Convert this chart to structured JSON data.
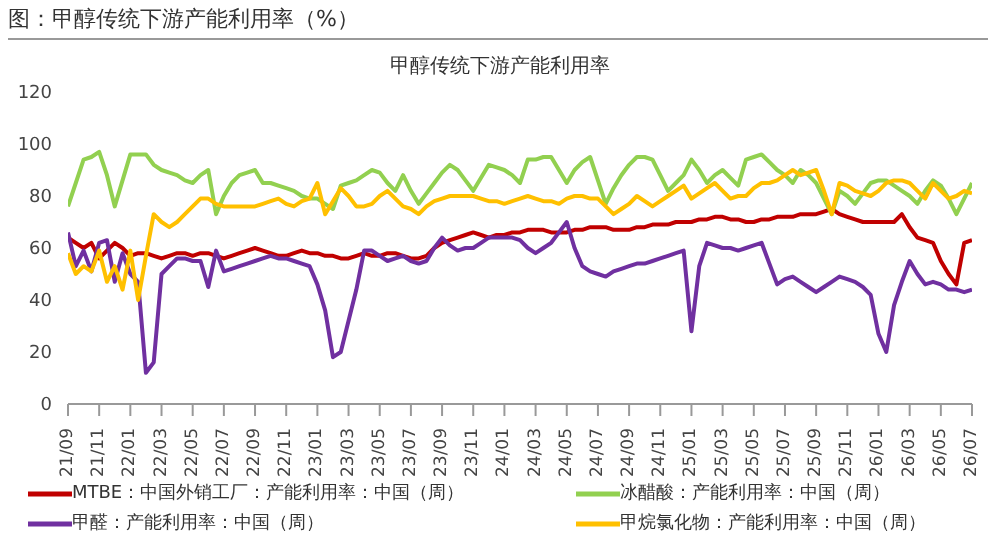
{
  "chart_data": {
    "type": "line",
    "title": "图：甲醇传统下游产能利用率（%）",
    "subtitle": "甲醇传统下游产能利用率",
    "categories": [
      "21/09",
      null,
      null,
      null,
      "21/11",
      null,
      null,
      null,
      "22/01",
      null,
      null,
      null,
      "22/03",
      null,
      null,
      null,
      "22/05",
      null,
      null,
      null,
      "22/07",
      null,
      null,
      null,
      "22/09",
      null,
      null,
      null,
      "22/11",
      null,
      null,
      null,
      "23/01",
      null,
      null,
      null,
      "23/03",
      null,
      null,
      null,
      "23/05",
      null,
      null,
      null,
      "23/07",
      null,
      null,
      null,
      "23/09",
      null,
      null,
      null,
      "23/11",
      null,
      null,
      null,
      "24/01",
      null,
      null,
      null,
      "24/03",
      null,
      null,
      null,
      "24/05",
      null,
      null,
      null,
      "24/07",
      null,
      null,
      null,
      "24/09",
      null,
      null,
      null,
      "24/11",
      null,
      null,
      null,
      "25/01",
      null,
      null,
      null,
      "25/03",
      null,
      null,
      null,
      "25/05",
      null,
      null,
      null,
      "25/07",
      null,
      null,
      null,
      "25/09",
      null,
      null,
      null,
      "25/11",
      null,
      null,
      null,
      "26/01",
      null,
      null,
      null,
      "26/03",
      null,
      null,
      null,
      "26/05",
      null,
      null,
      null,
      "26/07"
    ],
    "ylim": [
      0,
      120
    ],
    "yticks": [
      0,
      20,
      40,
      60,
      80,
      100,
      120
    ],
    "grid": false,
    "legend": "bottom",
    "series": [
      {
        "name": "MTBE：中国外销工厂：产能利用率：中国（周）",
        "color": "#c00000",
        "values": [
          64,
          62,
          60,
          62,
          56,
          59,
          62,
          60,
          57,
          58,
          58,
          57,
          56,
          57,
          58,
          58,
          57,
          58,
          58,
          57,
          56,
          57,
          58,
          59,
          60,
          59,
          58,
          57,
          57,
          58,
          59,
          58,
          58,
          57,
          57,
          56,
          56,
          57,
          58,
          57,
          57,
          58,
          58,
          57,
          56,
          56,
          57,
          60,
          62,
          63,
          64,
          65,
          66,
          65,
          64,
          65,
          65,
          66,
          66,
          67,
          67,
          67,
          66,
          66,
          66,
          67,
          67,
          68,
          68,
          68,
          67,
          67,
          67,
          68,
          68,
          69,
          69,
          69,
          70,
          70,
          70,
          71,
          71,
          72,
          72,
          71,
          71,
          70,
          70,
          71,
          71,
          72,
          72,
          72,
          73,
          73,
          73,
          74,
          75,
          73,
          72,
          71,
          70,
          70,
          70,
          70,
          70,
          73,
          68,
          64,
          63,
          62,
          55,
          50,
          46,
          62,
          63
        ]
      },
      {
        "name": "冰醋酸：产能利用率：中国（周）",
        "color": "#92d050",
        "values": [
          76,
          85,
          94,
          95,
          97,
          88,
          76,
          86,
          96,
          96,
          96,
          92,
          90,
          89,
          88,
          86,
          85,
          88,
          90,
          73,
          80,
          85,
          88,
          89,
          90,
          85,
          85,
          84,
          83,
          82,
          80,
          79,
          79,
          77,
          75,
          84,
          85,
          86,
          88,
          90,
          89,
          85,
          82,
          88,
          82,
          77,
          81,
          85,
          89,
          92,
          90,
          86,
          82,
          87,
          92,
          91,
          90,
          88,
          85,
          94,
          94,
          95,
          95,
          90,
          85,
          90,
          93,
          95,
          86,
          77,
          83,
          88,
          92,
          95,
          95,
          94,
          88,
          82,
          85,
          88,
          94,
          90,
          85,
          88,
          90,
          87,
          84,
          94,
          95,
          96,
          93,
          90,
          88,
          85,
          90,
          88,
          85,
          79,
          73,
          82,
          80,
          77,
          81,
          85,
          86,
          86,
          84,
          82,
          80,
          77,
          82,
          86,
          84,
          79,
          73,
          79,
          85
        ]
      },
      {
        "name": "甲醛：产能利用率：中国（周）",
        "color": "#7030a0",
        "values": [
          66,
          53,
          59,
          51,
          62,
          63,
          47,
          58,
          50,
          47,
          12,
          16,
          50,
          53,
          56,
          56,
          55,
          55,
          45,
          59,
          51,
          52,
          53,
          54,
          55,
          56,
          57,
          56,
          56,
          55,
          54,
          53,
          46,
          36,
          18,
          20,
          32,
          44,
          59,
          59,
          57,
          55,
          56,
          57,
          55,
          54,
          55,
          60,
          64,
          61,
          59,
          60,
          60,
          62,
          64,
          64,
          64,
          64,
          63,
          60,
          58,
          60,
          62,
          66,
          70,
          60,
          53,
          51,
          50,
          49,
          51,
          52,
          53,
          54,
          54,
          55,
          56,
          57,
          58,
          59,
          28,
          53,
          62,
          61,
          60,
          60,
          59,
          60,
          61,
          62,
          54,
          46,
          48,
          49,
          47,
          45,
          43,
          45,
          47,
          49,
          48,
          47,
          45,
          42,
          27,
          20,
          38,
          47,
          55,
          50,
          46,
          47,
          46,
          44,
          44,
          43,
          44
        ]
      },
      {
        "name": "甲烷氯化物：产能利用率：中国（周）",
        "color": "#ffc000",
        "values": [
          58,
          50,
          53,
          51,
          59,
          47,
          53,
          44,
          59,
          40,
          57,
          73,
          70,
          68,
          70,
          73,
          76,
          79,
          79,
          77,
          76,
          76,
          76,
          76,
          76,
          77,
          78,
          79,
          77,
          76,
          78,
          79,
          85,
          73,
          78,
          83,
          80,
          76,
          76,
          77,
          80,
          82,
          79,
          76,
          75,
          73,
          76,
          78,
          79,
          80,
          80,
          80,
          80,
          79,
          78,
          78,
          77,
          78,
          79,
          80,
          79,
          78,
          78,
          77,
          79,
          80,
          80,
          79,
          79,
          76,
          73,
          75,
          77,
          80,
          78,
          76,
          78,
          80,
          82,
          84,
          79,
          81,
          83,
          85,
          82,
          79,
          80,
          80,
          83,
          85,
          85,
          86,
          88,
          90,
          88,
          89,
          90,
          82,
          73,
          85,
          84,
          82,
          81,
          80,
          82,
          85,
          86,
          86,
          85,
          82,
          79,
          85,
          82,
          79,
          80,
          82,
          81
        ]
      }
    ]
  }
}
